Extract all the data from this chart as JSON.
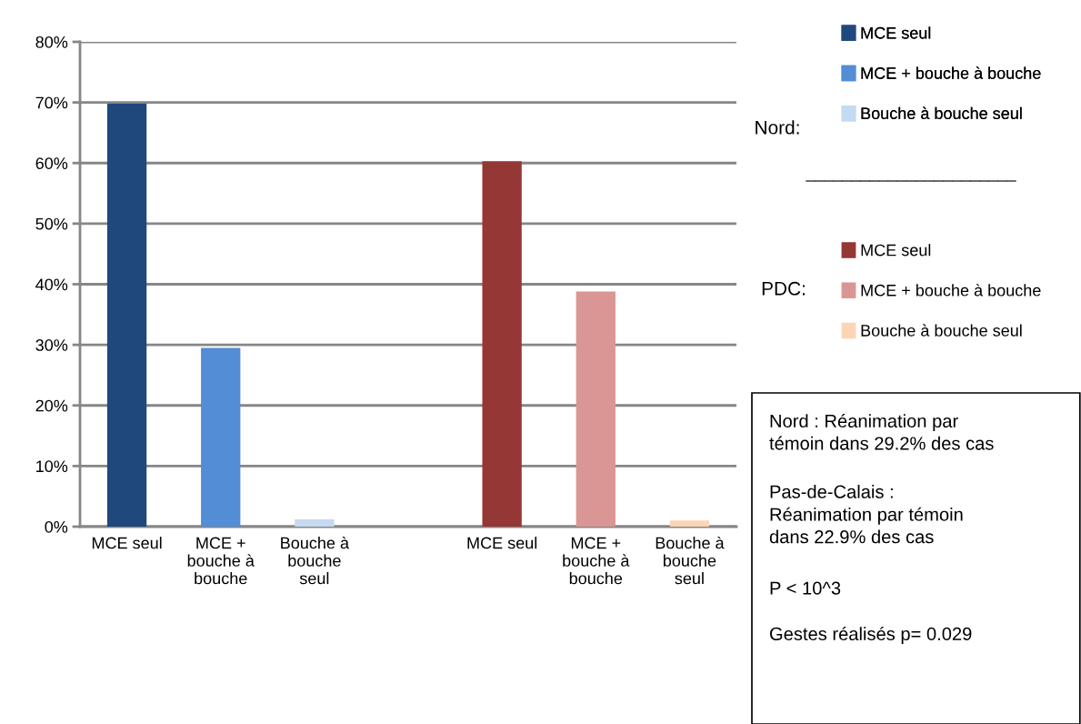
{
  "chart_data": {
    "type": "bar",
    "categories": [
      "MCE seul",
      "MCE +\nbouche à\nbouche",
      "Bouche à\nbouche\nseul",
      null,
      "MCE seul",
      "MCE +\nbouche à\nbouche",
      "Bouche à\nbouche\nseul"
    ],
    "series": [
      {
        "name": "MCE seul",
        "color": "#1f497d",
        "values": [
          69.8,
          null,
          null,
          null,
          null,
          null,
          null
        ]
      },
      {
        "name": "MCE + bouche à bouche",
        "color": "#538dd5",
        "values": [
          null,
          29.5,
          null,
          null,
          null,
          null,
          null
        ]
      },
      {
        "name": "Bouche à bouche seul",
        "color": "#c5d9f1",
        "values": [
          null,
          null,
          1.2,
          null,
          null,
          null,
          null
        ]
      },
      {
        "name": "MCE seul",
        "color": "#953735",
        "values": [
          null,
          null,
          null,
          null,
          60.3,
          null,
          null
        ]
      },
      {
        "name": "MCE + bouche à bouche",
        "color": "#da9694",
        "values": [
          null,
          null,
          null,
          null,
          null,
          38.8,
          null
        ]
      },
      {
        "name": "Bouche à bouche seul",
        "color": "#fcd5b4",
        "values": [
          null,
          null,
          null,
          null,
          null,
          null,
          1.0
        ]
      }
    ],
    "ylim": [
      0,
      80
    ],
    "yticks": [
      {
        "value": 0,
        "label": "0%"
      },
      {
        "value": 10,
        "label": "10%"
      },
      {
        "value": 20,
        "label": "20%"
      },
      {
        "value": 30,
        "label": "30%"
      },
      {
        "value": 40,
        "label": "40%"
      },
      {
        "value": 50,
        "label": "50%"
      },
      {
        "value": 60,
        "label": "60%"
      },
      {
        "value": 70,
        "label": "70%"
      },
      {
        "value": 80,
        "label": "80%"
      }
    ],
    "grid": "y",
    "legend": "right",
    "annotations": [
      "Nord:",
      "_______________________",
      "PDC:",
      "Nord : Réanimation par\ntémoin dans 29.2% des cas",
      "Pas-de-Calais :\nRéanimation par témoin\ndans 22.9% des cas",
      "P < 10^3",
      "Gestes réalisés p= 0.029"
    ]
  }
}
